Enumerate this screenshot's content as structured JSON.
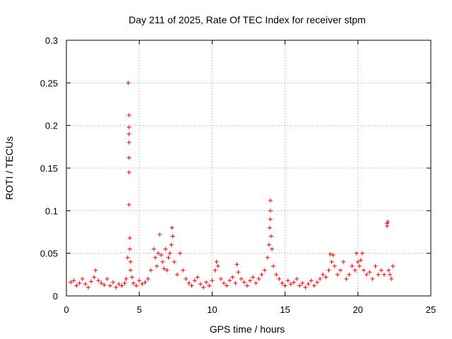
{
  "chart_data": {
    "type": "scatter",
    "title": "Day 211 of 2025, Rate Of TEC Index for receiver stpm",
    "xlabel": "GPS time / hours",
    "ylabel": "ROTI / TECUs",
    "xlim": [
      0,
      25
    ],
    "ylim": [
      0,
      0.3
    ],
    "xticks": [
      0,
      5,
      10,
      15,
      20,
      25
    ],
    "xtick_labels": [
      "0",
      "5",
      "10",
      "15",
      "20",
      "25"
    ],
    "yticks": [
      0,
      0.05,
      0.1,
      0.15,
      0.2,
      0.25,
      0.3
    ],
    "ytick_labels": [
      "0",
      "0.05",
      "0.1",
      "0.15",
      "0.2",
      "0.25",
      "0.3"
    ],
    "grid": true,
    "marker": "+",
    "color": "#ff0000",
    "series": [
      {
        "name": "ROTI",
        "x": [
          0.3,
          0.5,
          0.7,
          0.9,
          1.1,
          1.3,
          1.5,
          1.7,
          1.9,
          2.0,
          2.2,
          2.4,
          2.6,
          2.8,
          3.0,
          3.2,
          3.4,
          3.6,
          3.8,
          4.0,
          4.1,
          4.2,
          4.25,
          4.3,
          4.3,
          4.3,
          4.3,
          4.3,
          4.3,
          4.3,
          4.35,
          4.35,
          4.4,
          4.4,
          4.5,
          4.6,
          4.8,
          5.0,
          5.2,
          5.4,
          5.6,
          5.8,
          6.0,
          6.1,
          6.2,
          6.3,
          6.4,
          6.5,
          6.6,
          6.7,
          6.8,
          6.9,
          7.0,
          7.1,
          7.2,
          7.25,
          7.3,
          7.4,
          7.6,
          7.8,
          8.0,
          8.2,
          8.4,
          8.6,
          8.8,
          9.0,
          9.2,
          9.4,
          9.6,
          9.8,
          10.0,
          10.2,
          10.3,
          10.4,
          10.6,
          10.8,
          11.0,
          11.2,
          11.4,
          11.6,
          11.7,
          11.8,
          12.0,
          12.2,
          12.4,
          12.6,
          12.8,
          13.0,
          13.2,
          13.4,
          13.6,
          13.8,
          13.9,
          13.95,
          14.0,
          14.0,
          14.0,
          14.05,
          14.1,
          14.2,
          14.4,
          14.6,
          14.8,
          15.0,
          15.2,
          15.4,
          15.6,
          15.8,
          16.0,
          16.2,
          16.4,
          16.6,
          16.8,
          17.0,
          17.2,
          17.4,
          17.6,
          17.8,
          18.0,
          18.1,
          18.2,
          18.3,
          18.4,
          18.6,
          18.8,
          19.0,
          19.2,
          19.4,
          19.6,
          19.8,
          19.9,
          20.0,
          20.1,
          20.2,
          20.3,
          20.4,
          20.6,
          20.8,
          21.0,
          21.2,
          21.4,
          21.6,
          21.8,
          22.0,
          22.0,
          22.05,
          22.1,
          22.2,
          22.3,
          22.4
        ],
        "y": [
          0.016,
          0.018,
          0.012,
          0.015,
          0.02,
          0.014,
          0.01,
          0.017,
          0.022,
          0.03,
          0.018,
          0.015,
          0.013,
          0.02,
          0.012,
          0.016,
          0.01,
          0.014,
          0.012,
          0.015,
          0.02,
          0.045,
          0.25,
          0.212,
          0.198,
          0.19,
          0.18,
          0.162,
          0.145,
          0.107,
          0.068,
          0.055,
          0.04,
          0.03,
          0.022,
          0.015,
          0.012,
          0.018,
          0.014,
          0.016,
          0.02,
          0.03,
          0.055,
          0.045,
          0.035,
          0.05,
          0.072,
          0.048,
          0.04,
          0.032,
          0.055,
          0.03,
          0.045,
          0.05,
          0.06,
          0.08,
          0.07,
          0.04,
          0.025,
          0.05,
          0.03,
          0.02,
          0.015,
          0.012,
          0.018,
          0.022,
          0.014,
          0.01,
          0.016,
          0.012,
          0.018,
          0.03,
          0.04,
          0.035,
          0.02,
          0.015,
          0.012,
          0.018,
          0.022,
          0.015,
          0.037,
          0.028,
          0.02,
          0.016,
          0.012,
          0.018,
          0.022,
          0.015,
          0.02,
          0.025,
          0.03,
          0.045,
          0.06,
          0.08,
          0.112,
          0.1,
          0.09,
          0.07,
          0.055,
          0.035,
          0.025,
          0.02,
          0.015,
          0.012,
          0.018,
          0.014,
          0.016,
          0.02,
          0.012,
          0.015,
          0.01,
          0.014,
          0.018,
          0.012,
          0.016,
          0.02,
          0.025,
          0.022,
          0.03,
          0.049,
          0.04,
          0.048,
          0.035,
          0.025,
          0.03,
          0.04,
          0.02,
          0.025,
          0.035,
          0.03,
          0.05,
          0.04,
          0.035,
          0.042,
          0.05,
          0.03,
          0.025,
          0.028,
          0.02,
          0.035,
          0.025,
          0.03,
          0.025,
          0.085,
          0.082,
          0.087,
          0.03,
          0.025,
          0.02,
          0.035
        ]
      }
    ]
  }
}
